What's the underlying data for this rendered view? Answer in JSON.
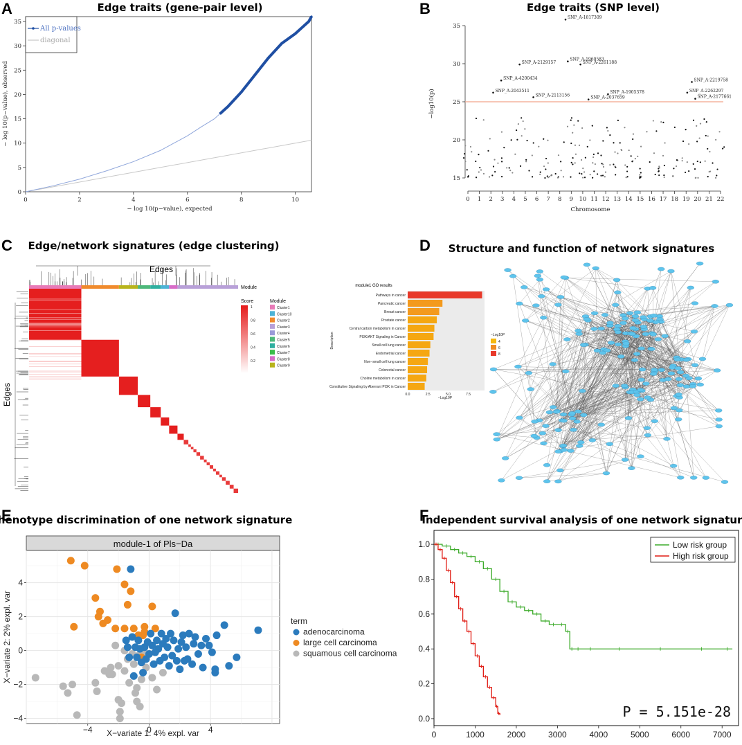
{
  "panel_labels": [
    "A",
    "B",
    "C",
    "D",
    "E",
    "F"
  ],
  "chart_data": [
    {
      "id": "A",
      "type": "line",
      "title": "Edge traits (gene-pair level)",
      "xlabel": "− log 10(p−value), expected",
      "ylabel": "− log 10(p−value), observed",
      "xlim": [
        0,
        10.6
      ],
      "ylim": [
        0,
        36
      ],
      "xticks": [
        "0",
        "2",
        "4",
        "6",
        "8",
        "10"
      ],
      "yticks": [
        "0",
        "5",
        "10",
        "15",
        "20",
        "25",
        "30",
        "35"
      ],
      "legend": [
        "All p-values",
        "diagonal"
      ],
      "series": [
        {
          "name": "All p-values",
          "x": [
            0,
            1,
            2,
            3,
            4,
            5,
            6,
            6.5,
            7,
            7.2,
            7.5,
            8,
            8.5,
            9,
            9.5,
            10,
            10.2,
            10.5,
            10.6
          ],
          "y": [
            0,
            1.2,
            2.6,
            4.3,
            6.2,
            8.5,
            11.5,
            13.3,
            15,
            16,
            17.5,
            20.5,
            24,
            27.5,
            30.5,
            32.5,
            33.5,
            35,
            36
          ]
        },
        {
          "name": "diagonal",
          "x": [
            0,
            10.6
          ],
          "y": [
            0,
            10.6
          ]
        }
      ]
    },
    {
      "id": "B",
      "type": "scatter",
      "title": "Edge traits (SNP level)",
      "xlabel": "Chromosome",
      "ylabel": "−log10(p)",
      "ylim": [
        14,
        36
      ],
      "yticks": [
        "15",
        "20",
        "25",
        "30",
        "35"
      ],
      "xticks": [
        "0",
        "1",
        "2",
        "3",
        "4",
        "5",
        "6",
        "7",
        "8",
        "9",
        "10",
        "11",
        "12",
        "13",
        "14",
        "15",
        "16",
        "17",
        "18",
        "19",
        "20",
        "21",
        "22"
      ],
      "threshold": 25,
      "annotations": [
        {
          "label": "SNP_A-1817309",
          "x": 8.5,
          "y": 35.8
        },
        {
          "label": "SNP_A-1960583",
          "x": 8.7,
          "y": 30.3
        },
        {
          "label": "SNP_A-2129157",
          "x": 4.5,
          "y": 29.9
        },
        {
          "label": "SNP_A-2261188",
          "x": 9.8,
          "y": 29.9
        },
        {
          "label": "SNP_A-4200434",
          "x": 2.9,
          "y": 27.8
        },
        {
          "label": "SNP_A-2219758",
          "x": 19.5,
          "y": 27.6
        },
        {
          "label": "SNP_A-2043511",
          "x": 2.2,
          "y": 26.2
        },
        {
          "label": "SNP_A-1905378",
          "x": 12.2,
          "y": 26.0
        },
        {
          "label": "SNP_A-2262297",
          "x": 19.1,
          "y": 26.2
        },
        {
          "label": "SNP_A-2113156",
          "x": 5.7,
          "y": 25.6
        },
        {
          "label": "SNP_A-2037659",
          "x": 10.5,
          "y": 25.3
        },
        {
          "label": "SNP_A-2177661",
          "x": 19.8,
          "y": 25.4
        }
      ]
    },
    {
      "id": "C",
      "type": "heatmap",
      "title": "Edge/network signatures (edge clustering)",
      "col_label": "Edges",
      "row_label": "Edges",
      "module_label": "Module",
      "score_legend": {
        "title": "Score",
        "ticks": [
          "1",
          "0.8",
          "0.6",
          "0.4",
          "0.2"
        ]
      },
      "module_legend": {
        "title": "Module",
        "items": [
          {
            "name": "Cluster1",
            "color": "#e87ab7"
          },
          {
            "name": "Cluster10",
            "color": "#4cb3d6"
          },
          {
            "name": "Cluster2",
            "color": "#f08a2c"
          },
          {
            "name": "Cluster3",
            "color": "#b8a0d8"
          },
          {
            "name": "Cluster4",
            "color": "#9a9ad8"
          },
          {
            "name": "Cluster5",
            "color": "#4db87a"
          },
          {
            "name": "Cluster6",
            "color": "#2eaf9f"
          },
          {
            "name": "Cluster7",
            "color": "#3cbe4a"
          },
          {
            "name": "Cluster8",
            "color": "#d86cc8"
          },
          {
            "name": "Cluster9",
            "color": "#b8b41c"
          }
        ]
      }
    },
    {
      "id": "C-inset",
      "type": "bar",
      "title": "module1 GO results",
      "xlabel": "−Log10P",
      "ylabel": "Description",
      "xticks": [
        "0.0",
        "2.5",
        "5.0",
        "7.5"
      ],
      "xlim": [
        0,
        9.5
      ],
      "legend": {
        "title": "−Log10P",
        "items": [
          "4",
          "6",
          "8"
        ]
      },
      "categories": [
        "Pathways in cancer",
        "Pancreatic cancer",
        "Breast cancer",
        "Prostate cancer",
        "Central carbon metabolism in cancer",
        "PI3K/AKT Signaling in Cancer",
        "Small cell lung cancer",
        "Endometrial cancer",
        "Non−small cell lung cancer",
        "Colorectal cancer",
        "Choline metabolism in cancer",
        "Constitutive Signaling by Aberrant PI3K in Cancer"
      ],
      "values": [
        9.2,
        4.3,
        3.9,
        3.6,
        3.3,
        3.2,
        2.8,
        2.7,
        2.5,
        2.4,
        2.3,
        2.1
      ]
    },
    {
      "id": "D",
      "type": "network",
      "title": "Structure and function of network signatures"
    },
    {
      "id": "E",
      "type": "scatter",
      "title": "Phenotype discrimination of one network signature",
      "strip": "module-1 of Pls−Da",
      "xlabel": "X−variate 1: 4% expl. var",
      "ylabel": "X−variate 2: 2% expl. var",
      "xlim": [
        -8,
        8.5
      ],
      "ylim": [
        -4.3,
        5.9
      ],
      "xticks": [
        "−4",
        "0",
        "4"
      ],
      "yticks": [
        "−4",
        "−2",
        "0",
        "2",
        "4"
      ],
      "legend_title": "term",
      "series": [
        {
          "name": "adenocarcinoma",
          "color": "#2b7bbd",
          "x": [
            7.1,
            5.7,
            5.2,
            4.9,
            4.4,
            4.3,
            4.3,
            4.1,
            3.9,
            3.7,
            3.5,
            3.4,
            3.2,
            3.0,
            2.9,
            2.8,
            2.6,
            2.5,
            2.4,
            2.3,
            2.2,
            2.1,
            2.0,
            1.9,
            1.8,
            1.7,
            1.6,
            1.5,
            1.4,
            1.3,
            1.2,
            1.1,
            1.0,
            0.9,
            0.8,
            0.7,
            0.6,
            0.5,
            0.4,
            0.3,
            0.2,
            0.1,
            0.0,
            -0.1,
            -0.2,
            -0.3,
            -0.4,
            -0.5,
            -0.6,
            -0.7,
            -0.8,
            -0.9,
            -1.0,
            -1.1,
            -1.2,
            -1.3,
            -1.4,
            -1.5
          ],
          "y": [
            1.2,
            -0.4,
            -0.9,
            1.5,
            0.9,
            -1.3,
            -1.1,
            -0.1,
            0.3,
            0.7,
            -1.0,
            0.3,
            -0.2,
            0.8,
            0.4,
            -0.8,
            1.0,
            -0.5,
            0.2,
            -0.6,
            0.9,
            0.5,
            -1.1,
            0.1,
            -0.6,
            2.2,
            0.6,
            -0.3,
            1.0,
            -0.9,
            0.2,
            0.7,
            -0.4,
            0.4,
            1.0,
            -0.6,
            0.1,
            0.6,
            -0.1,
            -0.8,
            0.3,
            1.0,
            -0.2,
            0.5,
            -0.5,
            0.2,
            -1.3,
            -0.7,
            0.1,
            0.6,
            -0.4,
            0.2,
            -1.5,
            0.8,
            4.8,
            -0.4,
            0.2,
            0.6
          ]
        },
        {
          "name": "large cell carcinoma",
          "color": "#ee8a22",
          "x": [
            -5.1,
            -4.2,
            -4.9,
            -2.1,
            -3.5,
            -3.3,
            -3.2,
            -3.0,
            -2.7,
            -2.2,
            -1.6,
            -1.6,
            -1.4,
            -1.2,
            -1.0,
            -0.7,
            -0.5,
            -0.4,
            -0.3,
            0.2,
            0.4,
            -0.3
          ],
          "y": [
            5.3,
            5.0,
            1.4,
            4.8,
            3.1,
            2.0,
            2.3,
            1.6,
            1.8,
            1.3,
            1.3,
            3.9,
            2.7,
            3.5,
            1.3,
            0.9,
            -0.4,
            0.9,
            1.1,
            2.6,
            1.3,
            1.4
          ]
        },
        {
          "name": "squamous cell carcinoma",
          "color": "#b8b8b8",
          "x": [
            -7.4,
            -5.6,
            -5.3,
            -5.0,
            -4.7,
            -3.5,
            -3.4,
            -2.9,
            -2.6,
            -2.5,
            -2.4,
            -2.2,
            -2.0,
            -2.0,
            -1.8,
            -1.6,
            -1.4,
            -1.3,
            -1.1,
            -1.0,
            -0.8,
            -0.7,
            -0.6,
            -0.5,
            -0.3,
            -0.2,
            0.2,
            0.5,
            0.9,
            -1.9,
            -1.9,
            -0.9,
            -0.8,
            -1.6
          ],
          "y": [
            -1.6,
            -2.1,
            -2.5,
            -2.0,
            -3.8,
            -1.9,
            -2.4,
            -1.2,
            -1.4,
            -1.0,
            -1.4,
            0.3,
            -0.9,
            -2.9,
            -3.1,
            -1.2,
            -0.5,
            -1.9,
            -0.2,
            -0.8,
            -2.2,
            -0.3,
            -3.3,
            -1.7,
            -0.1,
            -1.0,
            -1.6,
            -2.3,
            -1.3,
            -3.6,
            -4.0,
            -2.5,
            -3.0,
            0.0
          ]
        }
      ]
    },
    {
      "id": "F",
      "type": "line",
      "title": "Independent survival analysis of one network signature",
      "xlim": [
        0,
        7400
      ],
      "ylim": [
        -0.04,
        1.08
      ],
      "xticks": [
        "0",
        "1000",
        "2000",
        "3000",
        "4000",
        "5000",
        "6000",
        "7000"
      ],
      "yticks": [
        "0.0",
        "0.2",
        "0.4",
        "0.6",
        "0.8",
        "1.0"
      ],
      "annotation": "P = 5.151e-28",
      "series": [
        {
          "name": "Low risk group",
          "color": "#3cab2a",
          "x": [
            0,
            200,
            400,
            600,
            800,
            1000,
            1200,
            1400,
            1600,
            1800,
            2000,
            2200,
            2400,
            2600,
            2800,
            3000,
            3200,
            3300,
            3400,
            3600,
            4000,
            5000,
            6000,
            7000,
            7250
          ],
          "y": [
            1.0,
            0.99,
            0.97,
            0.95,
            0.93,
            0.9,
            0.86,
            0.8,
            0.73,
            0.67,
            0.64,
            0.62,
            0.6,
            0.56,
            0.54,
            0.54,
            0.5,
            0.4,
            0.4,
            0.4,
            0.4,
            0.4,
            0.4,
            0.4,
            0.4
          ]
        },
        {
          "name": "High risk group",
          "color": "#e01c14",
          "x": [
            0,
            100,
            200,
            300,
            400,
            500,
            600,
            700,
            800,
            900,
            1000,
            1100,
            1200,
            1300,
            1400,
            1500,
            1550,
            1600
          ],
          "y": [
            1.0,
            0.97,
            0.92,
            0.85,
            0.78,
            0.7,
            0.63,
            0.56,
            0.5,
            0.43,
            0.36,
            0.3,
            0.24,
            0.18,
            0.12,
            0.07,
            0.03,
            0.02
          ]
        }
      ]
    }
  ]
}
